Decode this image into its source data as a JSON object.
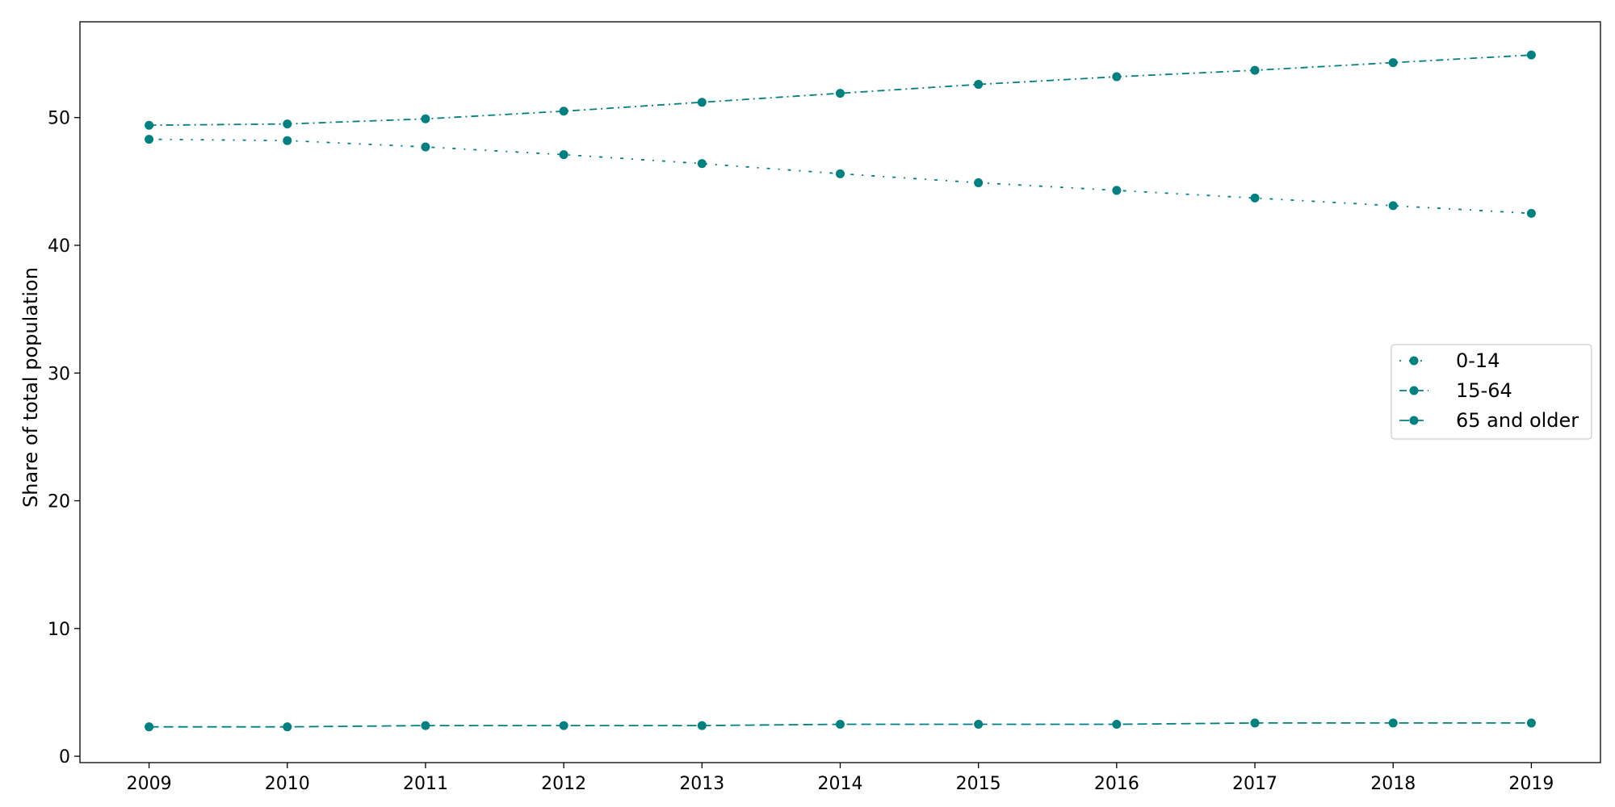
{
  "chart_data": {
    "type": "line",
    "title": "",
    "xlabel": "",
    "ylabel": "Share of total population",
    "x": [
      2009,
      2010,
      2011,
      2012,
      2013,
      2014,
      2015,
      2016,
      2017,
      2018,
      2019
    ],
    "xlim": [
      2008.5,
      2019.5
    ],
    "ylim": [
      -0.5,
      57.5
    ],
    "yticks": [
      0,
      10,
      20,
      30,
      40,
      50
    ],
    "grid": false,
    "legend_position": "center-right",
    "color": "#008080",
    "series": [
      {
        "name": "0-14",
        "dash": "dotted-dash",
        "values": [
          48.3,
          48.2,
          47.7,
          47.1,
          46.4,
          45.6,
          44.9,
          44.3,
          43.7,
          43.1,
          42.5
        ]
      },
      {
        "name": "15-64",
        "dash": "dash-dot",
        "values": [
          49.4,
          49.5,
          49.9,
          50.5,
          51.2,
          51.9,
          52.6,
          53.2,
          53.7,
          54.3,
          54.9
        ]
      },
      {
        "name": "65 and older",
        "dash": "dashed",
        "values": [
          2.3,
          2.3,
          2.4,
          2.4,
          2.4,
          2.5,
          2.5,
          2.5,
          2.6,
          2.6,
          2.6
        ]
      }
    ]
  }
}
